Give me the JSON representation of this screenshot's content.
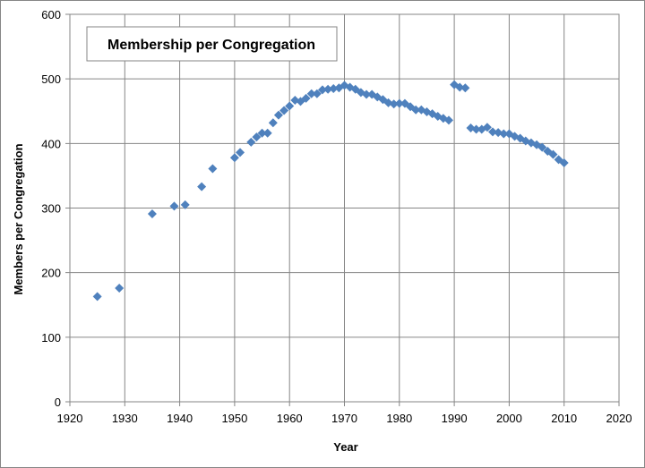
{
  "chart_data": {
    "type": "scatter",
    "title": "Membership per Congregation",
    "xlabel": "Year",
    "ylabel": "Members per Congregation",
    "xlim": [
      1920,
      2020
    ],
    "ylim": [
      0,
      600
    ],
    "xticks": [
      1920,
      1930,
      1940,
      1950,
      1960,
      1970,
      1980,
      1990,
      2000,
      2010,
      2020
    ],
    "yticks": [
      0,
      100,
      200,
      300,
      400,
      500,
      600
    ],
    "grid": "vertical and horizontal major gridlines",
    "legend": "none",
    "marker": "diamond",
    "marker_color": "#4f81bd",
    "series": [
      {
        "x": [
          1925,
          1929,
          1935,
          1939,
          1941,
          1944,
          1946,
          1950,
          1951,
          1953,
          1954,
          1955,
          1956,
          1957,
          1958,
          1959,
          1960,
          1961,
          1962,
          1963,
          1964,
          1965,
          1966,
          1967,
          1968,
          1969,
          1970,
          1971,
          1972,
          1973,
          1974,
          1975,
          1976,
          1977,
          1978,
          1979,
          1980,
          1981,
          1982,
          1983,
          1984,
          1985,
          1986,
          1987,
          1988,
          1989,
          1990,
          1991,
          1992,
          1993,
          1994,
          1995,
          1996,
          1997,
          1998,
          1999,
          2000,
          2001,
          2002,
          2003,
          2004,
          2005,
          2006,
          2007,
          2008,
          2009,
          2010
        ],
        "y": [
          163,
          176,
          291,
          303,
          305,
          333,
          361,
          378,
          386,
          402,
          410,
          416,
          416,
          432,
          444,
          451,
          458,
          467,
          465,
          470,
          477,
          477,
          483,
          484,
          485,
          486,
          490,
          487,
          484,
          479,
          476,
          476,
          472,
          468,
          463,
          461,
          462,
          462,
          457,
          452,
          452,
          449,
          446,
          442,
          439,
          436,
          491,
          487,
          486,
          424,
          422,
          422,
          425,
          418,
          417,
          415,
          415,
          411,
          408,
          404,
          401,
          398,
          394,
          388,
          383,
          375,
          370
        ]
      }
    ]
  }
}
